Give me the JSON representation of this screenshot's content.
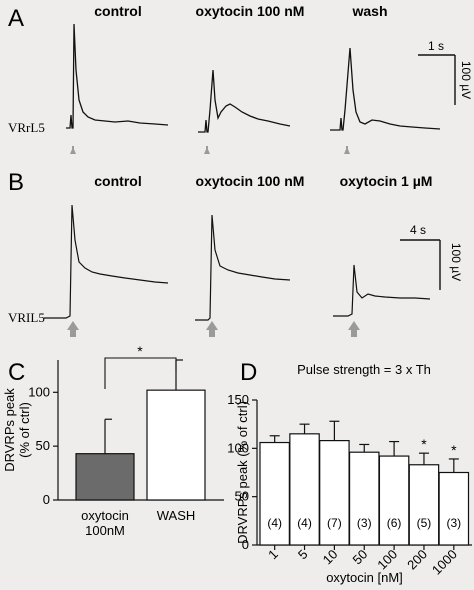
{
  "panel_a": {
    "letter": "A",
    "conditions": [
      "control",
      "oxytocin 100 nM",
      "wash"
    ],
    "trace_label": "VRrL5",
    "scale_time": "1 s",
    "scale_amp": "100 µV",
    "arrow_color": "#9a9a9a"
  },
  "panel_b": {
    "letter": "B",
    "conditions": [
      "control",
      "oxytocin 100 nM",
      "oxytocin 1 µM"
    ],
    "trace_label": "VRIL5",
    "scale_time": "4 s",
    "scale_amp": "100 µV",
    "arrow_color": "#9a9a9a"
  },
  "panel_c": {
    "letter": "C",
    "significance": "*",
    "bar_colors": [
      "#6b6b6b",
      "#ffffff"
    ]
  },
  "panel_d": {
    "letter": "D",
    "annotation": "Pulse strength = 3 x Th",
    "significance": [
      "*",
      "*"
    ]
  },
  "chart_data": [
    {
      "type": "bar",
      "categories": [
        "oxytocin\n100nM",
        "WASH"
      ],
      "values": [
        43,
        102
      ],
      "error": [
        32,
        28
      ],
      "ylabel": "DRVRPs peak\n(% of ctrl)",
      "yticks": [
        0,
        50,
        100
      ],
      "ylim": [
        0,
        130
      ],
      "significant_pairs": [
        [
          "oxytocin\n100nM",
          "WASH"
        ]
      ]
    },
    {
      "type": "bar",
      "categories": [
        "1",
        "5",
        "10",
        "50",
        "100",
        "200",
        "1000"
      ],
      "values": [
        106,
        115,
        108,
        96,
        92,
        83,
        75
      ],
      "error": [
        7,
        10,
        20,
        8,
        15,
        12,
        14
      ],
      "n": [
        "(4)",
        "(4)",
        "(7)",
        "(3)",
        "(6)",
        "(5)",
        "(3)"
      ],
      "significant": [
        false,
        false,
        false,
        false,
        false,
        true,
        true
      ],
      "xlabel": "oxytocin [nM]",
      "ylabel": "DRVRPs peak (% of ctrl)",
      "yticks": [
        0,
        50,
        100,
        150
      ],
      "ylim": [
        0,
        150
      ]
    }
  ]
}
